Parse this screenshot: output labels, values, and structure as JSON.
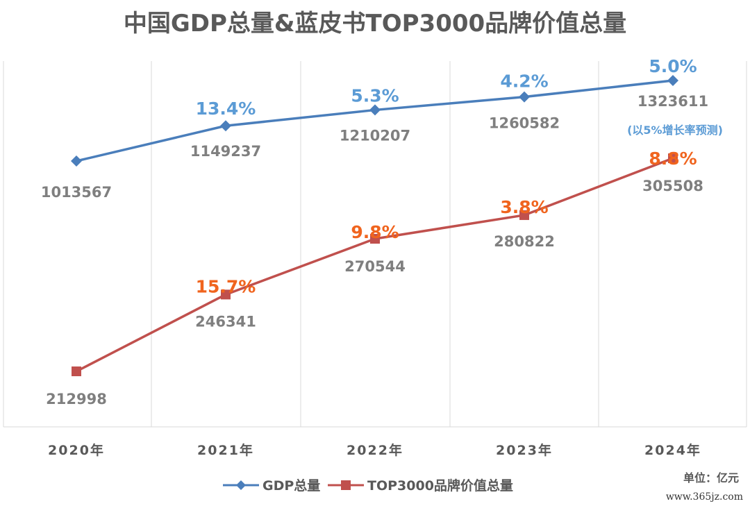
{
  "chart_data": {
    "type": "line",
    "title": "中国GDP总量&蓝皮书TOP3000品牌价值总量",
    "categories": [
      "2020年",
      "2021年",
      "2022年",
      "2023年",
      "2024年"
    ],
    "series": [
      {
        "name": "GDP总量",
        "color": "#4a7ebb",
        "label_color": "#5b9bd5",
        "values": [
          1013567,
          1149237,
          1210207,
          1260582,
          1323611
        ],
        "value_labels": [
          "1013567",
          "1149237",
          "1210207",
          "1260582",
          "1323611"
        ],
        "growth_labels": [
          "",
          "13.4%",
          "5.3%",
          "4.2%",
          "5.0%"
        ]
      },
      {
        "name": "TOP3000品牌价值总量",
        "color": "#c0504d",
        "label_color": "#f0641e",
        "values": [
          212998,
          246341,
          270544,
          280822,
          305508
        ],
        "value_labels": [
          "212998",
          "246341",
          "270544",
          "280822",
          "305508"
        ],
        "growth_labels": [
          "",
          "15.7%",
          "9.8%",
          "3.8%",
          "8.8%"
        ]
      }
    ],
    "annotation": "(以5%增长率预测)",
    "unit": "单位：亿元",
    "legend_position": "bottom",
    "grid": "vertical"
  },
  "watermark": "www.365jz.com"
}
